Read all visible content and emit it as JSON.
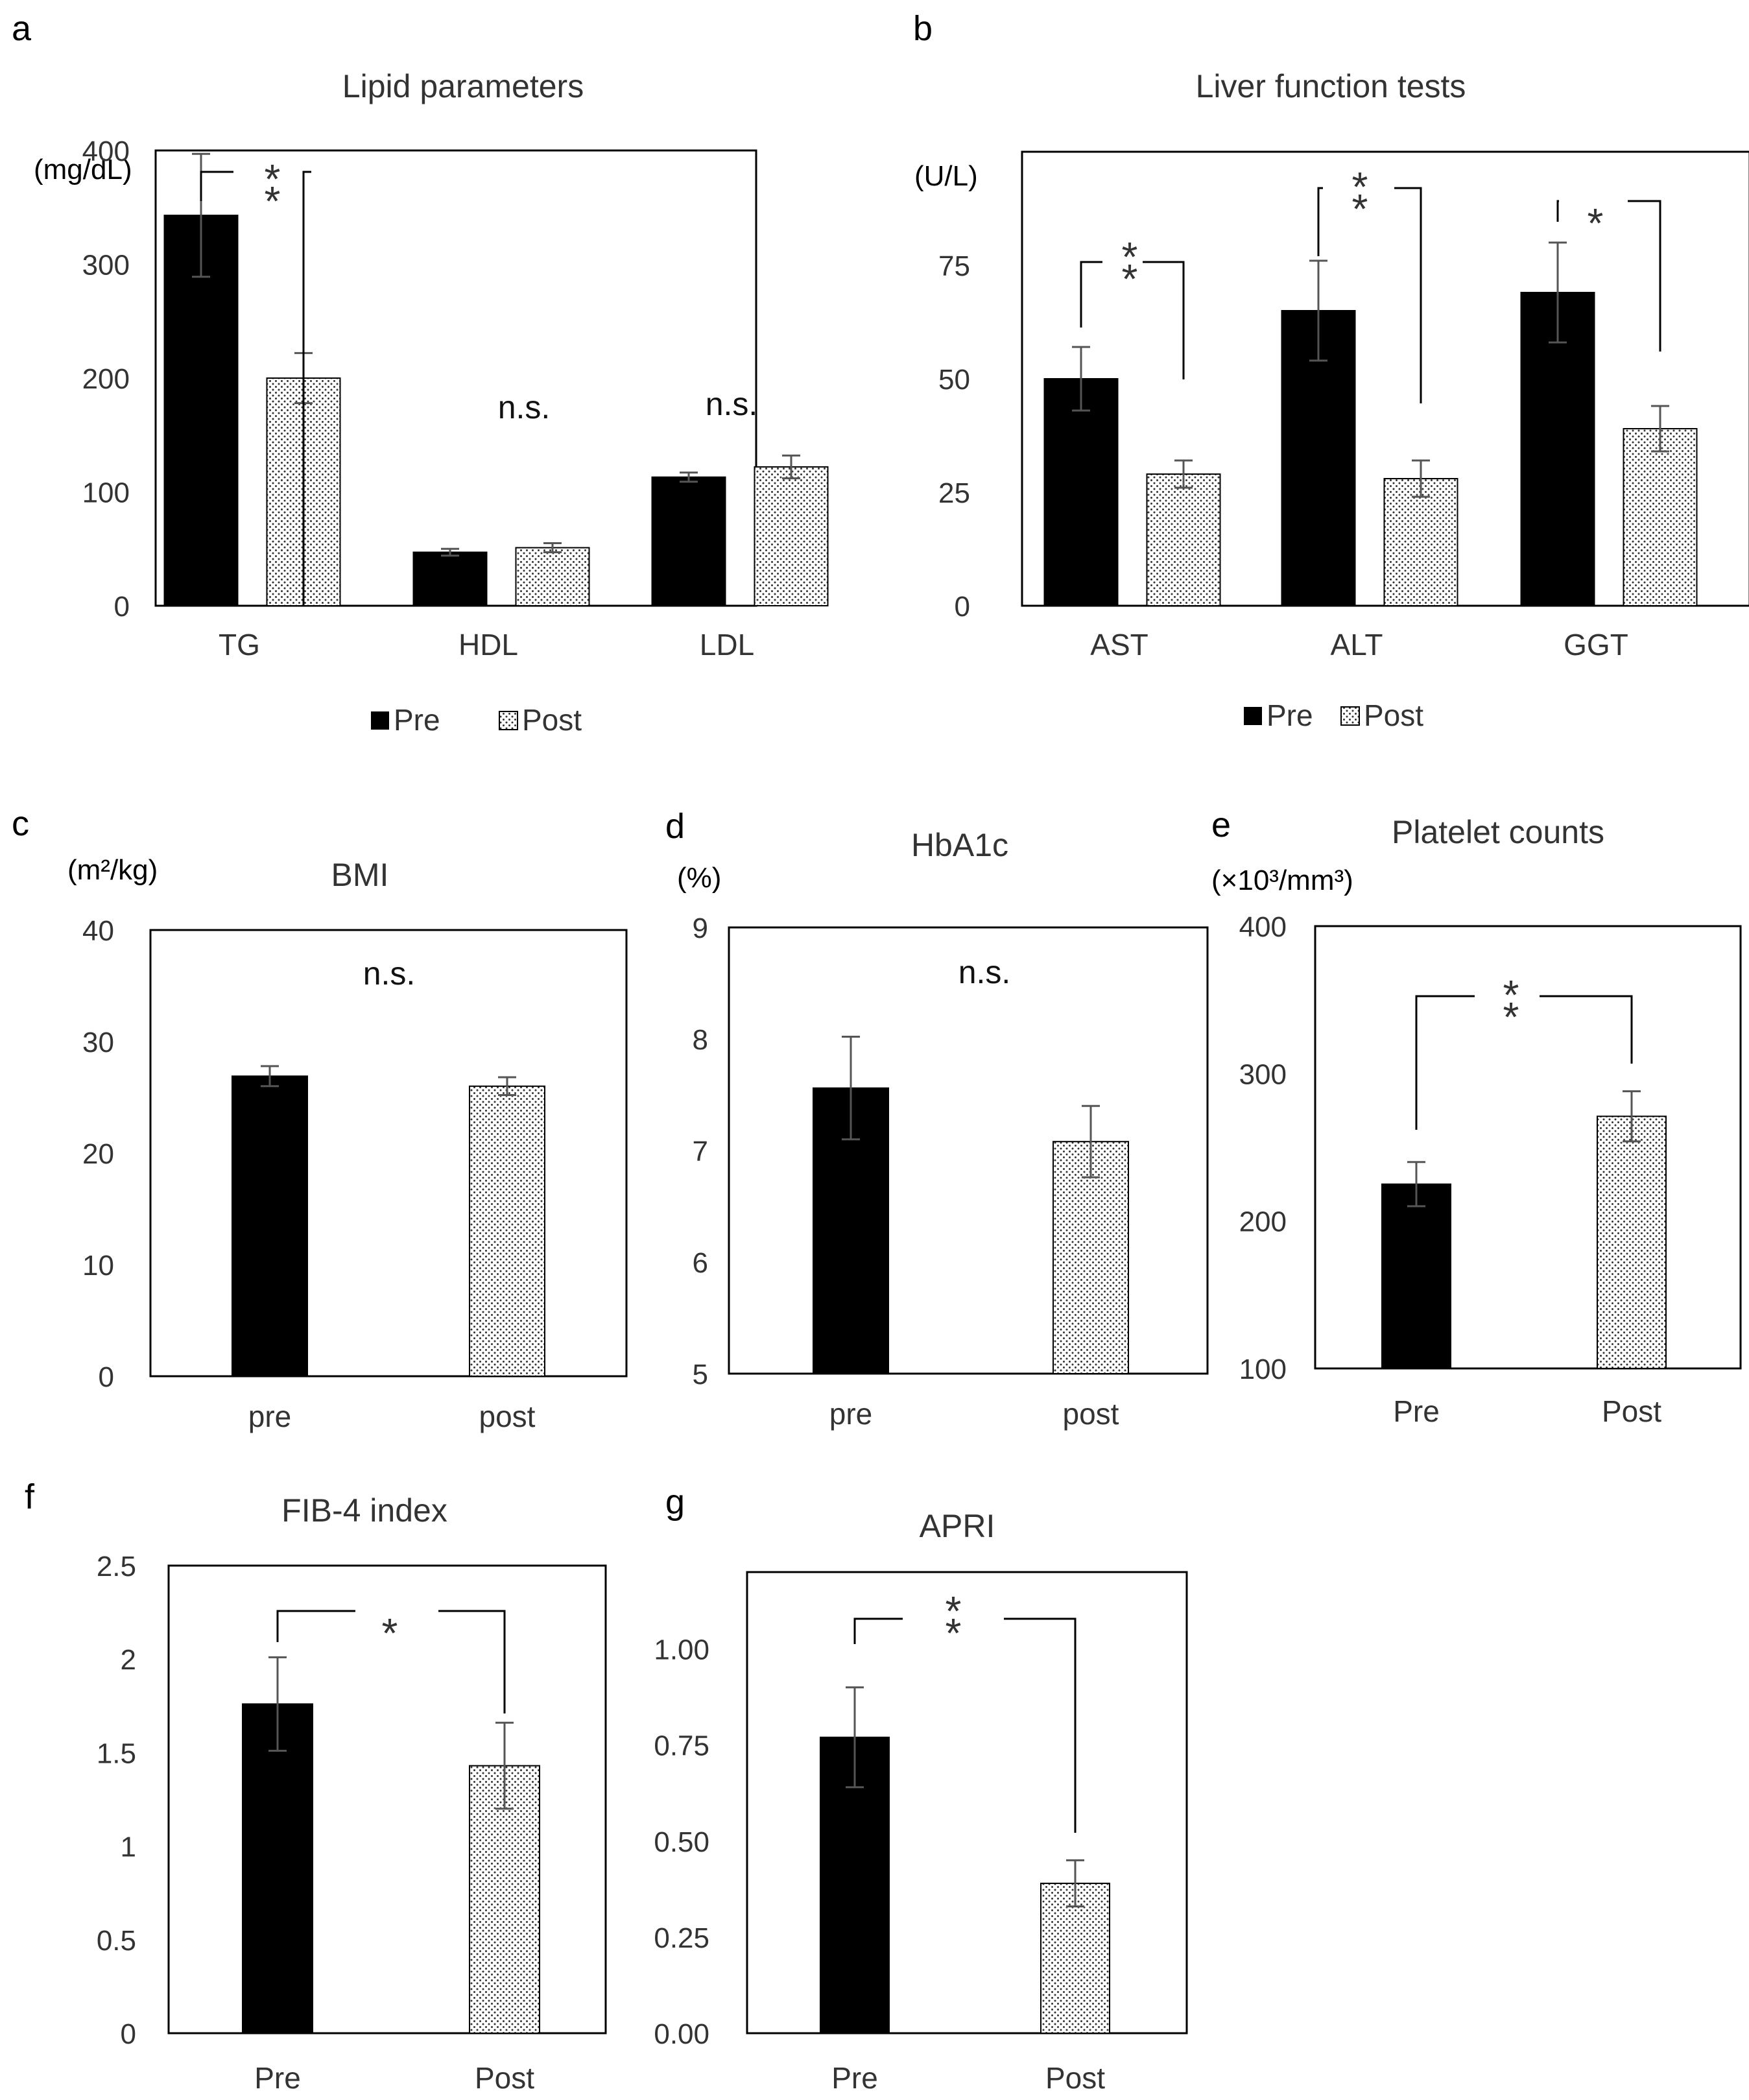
{
  "chart_data": [
    {
      "type": "bar",
      "id": "a",
      "letter": "a",
      "title": "Lipid parameters",
      "ylabel": "(mg/dL)",
      "ylim": [
        0,
        400
      ],
      "yticks": [
        0,
        100,
        200,
        300,
        400
      ],
      "tick_labels": [
        "0",
        "100",
        "200",
        "300",
        "400"
      ],
      "categories": [
        "TG",
        "HDL",
        "LDL"
      ],
      "series": [
        {
          "name": "Pre",
          "values": [
            343,
            47,
            113
          ],
          "errors": [
            54,
            3,
            4
          ]
        },
        {
          "name": "Post",
          "values": [
            200,
            51,
            122
          ],
          "errors": [
            22,
            4,
            10
          ]
        }
      ],
      "legend": {
        "position": "bottom",
        "labels": [
          "Pre",
          "Post"
        ]
      },
      "annotations": [
        {
          "type": "bracket",
          "category": 0,
          "label": "**"
        },
        {
          "type": "text",
          "category": 1,
          "label": "n.s."
        },
        {
          "type": "text",
          "category": 2,
          "label": "n.s."
        }
      ]
    },
    {
      "type": "bar",
      "id": "b",
      "letter": "b",
      "title": "Liver function tests",
      "ylabel": "(U/L)",
      "ylim": [
        0,
        100
      ],
      "yticks": [
        0,
        25,
        50,
        75
      ],
      "tick_labels": [
        "0",
        "25",
        "50",
        "75"
      ],
      "categories": [
        "AST",
        "ALT",
        "GGT"
      ],
      "series": [
        {
          "name": "Pre",
          "values": [
            50,
            65,
            69
          ],
          "errors": [
            7,
            11,
            11
          ]
        },
        {
          "name": "Post",
          "values": [
            29,
            28,
            39
          ],
          "errors": [
            3,
            4,
            5
          ]
        }
      ],
      "legend": {
        "position": "bottom",
        "labels": [
          "Pre",
          "Post"
        ]
      },
      "annotations": [
        {
          "type": "bracket",
          "category": 0,
          "label": "**"
        },
        {
          "type": "bracket",
          "category": 1,
          "label": "**"
        },
        {
          "type": "bracket",
          "category": 2,
          "label": "*"
        }
      ]
    },
    {
      "type": "bar",
      "id": "c",
      "letter": "c",
      "title": "BMI",
      "ylabel": "(m²/kg)",
      "ylim": [
        0,
        40
      ],
      "yticks": [
        0,
        10,
        20,
        30,
        40
      ],
      "tick_labels": [
        "0",
        "10",
        "20",
        "30",
        "40"
      ],
      "categories": [
        "pre",
        "post"
      ],
      "values": [
        26.9,
        26.0
      ],
      "errors": [
        0.9,
        0.8
      ],
      "annotations": [
        {
          "type": "text",
          "label": "n.s."
        }
      ]
    },
    {
      "type": "bar",
      "id": "d",
      "letter": "d",
      "title": "HbA1c",
      "ylabel": "(%)",
      "ylim": [
        5,
        9
      ],
      "yticks": [
        5,
        6,
        7,
        8,
        9
      ],
      "tick_labels": [
        "5",
        "6",
        "7",
        "8",
        "9"
      ],
      "categories": [
        "pre",
        "post"
      ],
      "values": [
        7.56,
        7.08
      ],
      "errors": [
        0.46,
        0.32
      ],
      "annotations": [
        {
          "type": "text",
          "label": "n.s."
        }
      ]
    },
    {
      "type": "bar",
      "id": "e",
      "letter": "e",
      "title": "Platelet counts",
      "ylabel": "(×10³/mm³)",
      "ylim": [
        100,
        400
      ],
      "yticks": [
        100,
        200,
        300,
        400
      ],
      "tick_labels": [
        "100",
        "200",
        "300",
        "400"
      ],
      "categories": [
        "Pre",
        "Post"
      ],
      "values": [
        225,
        271
      ],
      "errors": [
        15,
        17
      ],
      "annotations": [
        {
          "type": "bracket",
          "label": "**"
        }
      ]
    },
    {
      "type": "bar",
      "id": "f",
      "letter": "f",
      "title": "FIB-4 index",
      "ylabel": "",
      "ylim": [
        0,
        2.5
      ],
      "yticks": [
        0,
        0.5,
        1,
        1.5,
        2,
        2.5
      ],
      "tick_labels": [
        "0",
        "0.5",
        "1",
        "1.5",
        "2",
        "2.5"
      ],
      "categories": [
        "Pre",
        "Post"
      ],
      "values": [
        1.76,
        1.43
      ],
      "errors": [
        0.25,
        0.23
      ],
      "annotations": [
        {
          "type": "bracket",
          "label": "*"
        }
      ]
    },
    {
      "type": "bar",
      "id": "g",
      "letter": "g",
      "title": "APRI",
      "ylabel": "",
      "ylim": [
        0,
        1.2
      ],
      "yticks": [
        0,
        0.25,
        0.5,
        0.75,
        1.0
      ],
      "tick_labels": [
        "0.00",
        "0.25",
        "0.50",
        "0.75",
        "1.00"
      ],
      "categories": [
        "Pre",
        "Post"
      ],
      "values": [
        0.77,
        0.39
      ],
      "errors": [
        0.13,
        0.06
      ],
      "annotations": [
        {
          "type": "bracket",
          "label": "**"
        }
      ]
    }
  ]
}
